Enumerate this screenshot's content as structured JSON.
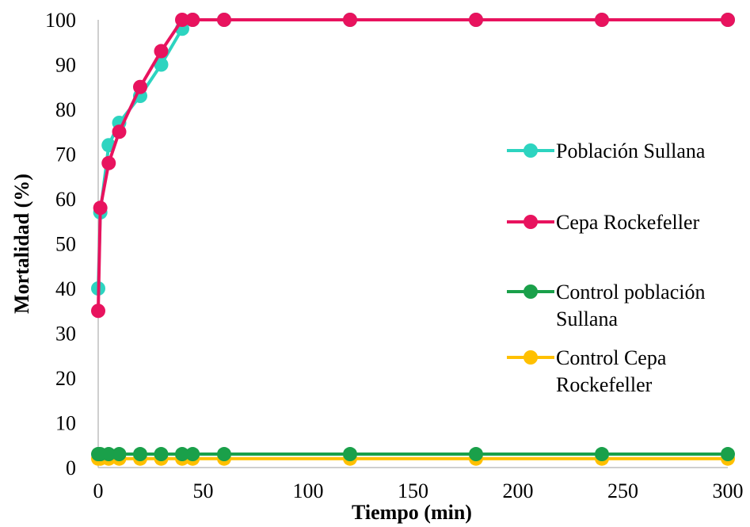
{
  "chart_data": {
    "type": "line",
    "title": "",
    "xlabel": "Tiempo (min)",
    "ylabel": "Mortalidad (%)",
    "xlim": [
      0,
      300
    ],
    "ylim": [
      0,
      100
    ],
    "x_ticks": [
      0,
      50,
      100,
      150,
      200,
      250,
      300
    ],
    "y_ticks": [
      0,
      10,
      20,
      30,
      40,
      50,
      60,
      70,
      80,
      90,
      100
    ],
    "grid": false,
    "legend_position": "right",
    "x": [
      0,
      1,
      5,
      10,
      20,
      30,
      40,
      45,
      60,
      120,
      180,
      240,
      300
    ],
    "series": [
      {
        "name": "Población Sullana",
        "color": "#2DD4C0",
        "values": [
          40,
          57,
          72,
          77,
          83,
          90,
          98,
          100,
          100,
          100,
          100,
          100,
          100
        ]
      },
      {
        "name": "Cepa Rockefeller",
        "color": "#E8135E",
        "values": [
          35,
          58,
          68,
          75,
          85,
          93,
          100,
          100,
          100,
          100,
          100,
          100,
          100
        ]
      },
      {
        "name": "Control población Sullana",
        "color": "#1AA04A",
        "values": [
          3,
          3,
          3,
          3,
          3,
          3,
          3,
          3,
          3,
          3,
          3,
          3,
          3
        ]
      },
      {
        "name": "Control Cepa Rockefeller",
        "color": "#FFC000",
        "values": [
          2,
          2,
          2,
          2,
          2,
          2,
          2,
          2,
          2,
          2,
          2,
          2,
          2
        ]
      }
    ]
  }
}
